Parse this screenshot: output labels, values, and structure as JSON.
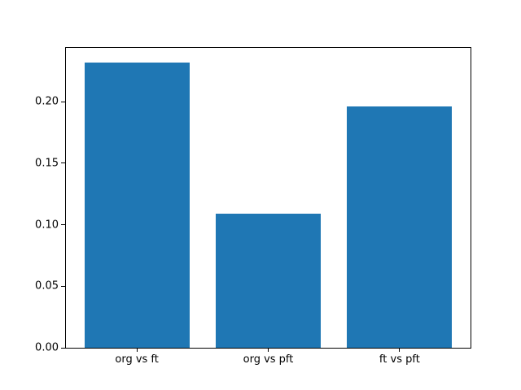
{
  "chart_data": {
    "type": "bar",
    "title": "",
    "xlabel": "",
    "ylabel": "",
    "categories": [
      "org vs ft",
      "org vs pft",
      "ft vs pft"
    ],
    "values": [
      0.232,
      0.109,
      0.196
    ],
    "yticks": [
      {
        "value": 0.0,
        "label": "0.00"
      },
      {
        "value": 0.05,
        "label": "0.05"
      },
      {
        "value": 0.1,
        "label": "0.10"
      },
      {
        "value": 0.15,
        "label": "0.15"
      },
      {
        "value": 0.2,
        "label": "0.20"
      }
    ],
    "ylim": [
      0,
      0.2436
    ],
    "xlim": [
      -0.54,
      2.54
    ],
    "bar_width": 0.8,
    "grid": false,
    "legend": null,
    "colors": {
      "bar": "#1f77b4",
      "frame": "#000000",
      "text": "#000000",
      "background": "#ffffff"
    }
  }
}
